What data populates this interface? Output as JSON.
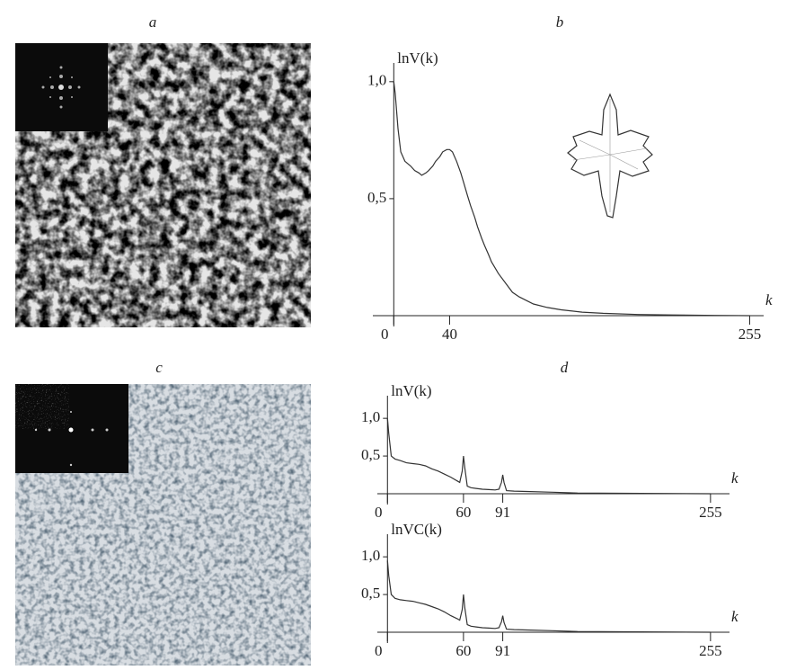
{
  "panels": [
    "a",
    "b",
    "c",
    "d"
  ],
  "chart_data": [
    {
      "type": "line",
      "y_label": "lnV(k)",
      "x_label": "k",
      "x": [
        0,
        1,
        3,
        5,
        8,
        12,
        15,
        18,
        20,
        23,
        25,
        28,
        30,
        33,
        35,
        38,
        40,
        42,
        45,
        48,
        50,
        53,
        55,
        58,
        60,
        63,
        65,
        68,
        70,
        75,
        80,
        85,
        90,
        100,
        110,
        120,
        135,
        150,
        175,
        200,
        230,
        255
      ],
      "values": [
        1.0,
        0.95,
        0.8,
        0.7,
        0.66,
        0.64,
        0.62,
        0.61,
        0.6,
        0.61,
        0.62,
        0.64,
        0.66,
        0.68,
        0.7,
        0.71,
        0.71,
        0.7,
        0.66,
        0.61,
        0.57,
        0.51,
        0.47,
        0.42,
        0.38,
        0.33,
        0.3,
        0.26,
        0.23,
        0.18,
        0.14,
        0.1,
        0.08,
        0.05,
        0.035,
        0.025,
        0.015,
        0.01,
        0.005,
        0.003,
        0.001,
        0
      ],
      "xlim": [
        -15,
        265
      ],
      "ylim": [
        0,
        1.08
      ],
      "xticks": [
        0,
        40,
        255
      ],
      "yticks": [
        {
          "value": 0.5,
          "label": "0,5"
        },
        {
          "value": 1.0,
          "label": "1,0"
        }
      ]
    },
    {
      "type": "line",
      "y_label": "lnV(k)",
      "x_label": "k",
      "x": [
        0,
        1,
        3,
        6,
        10,
        15,
        20,
        25,
        30,
        35,
        40,
        45,
        50,
        55,
        57,
        59,
        60,
        61,
        63,
        66,
        70,
        75,
        80,
        85,
        88,
        90,
        91,
        92,
        94,
        100,
        110,
        130,
        150,
        200,
        255
      ],
      "values": [
        1.0,
        0.8,
        0.5,
        0.46,
        0.44,
        0.41,
        0.4,
        0.39,
        0.37,
        0.33,
        0.3,
        0.26,
        0.22,
        0.17,
        0.15,
        0.3,
        0.5,
        0.35,
        0.1,
        0.08,
        0.07,
        0.06,
        0.055,
        0.05,
        0.06,
        0.15,
        0.25,
        0.15,
        0.04,
        0.035,
        0.03,
        0.02,
        0.01,
        0.005,
        0
      ],
      "xlim": [
        -8,
        270
      ],
      "ylim": [
        0,
        1.3
      ],
      "xticks": [
        0,
        60,
        91,
        255
      ],
      "yticks": [
        {
          "value": 0.5,
          "label": "0,5"
        },
        {
          "value": 1.0,
          "label": "1,0"
        }
      ]
    },
    {
      "type": "line",
      "y_label": "lnVC(k)",
      "x_label": "k",
      "x": [
        0,
        1,
        3,
        6,
        10,
        15,
        20,
        25,
        30,
        35,
        40,
        45,
        50,
        55,
        57,
        59,
        60,
        61,
        63,
        66,
        70,
        75,
        80,
        85,
        88,
        90,
        91,
        92,
        94,
        100,
        110,
        130,
        150,
        200,
        255
      ],
      "values": [
        0.95,
        0.75,
        0.5,
        0.45,
        0.43,
        0.42,
        0.41,
        0.39,
        0.37,
        0.34,
        0.31,
        0.27,
        0.22,
        0.18,
        0.16,
        0.3,
        0.5,
        0.33,
        0.1,
        0.08,
        0.07,
        0.06,
        0.055,
        0.05,
        0.06,
        0.14,
        0.22,
        0.13,
        0.04,
        0.035,
        0.03,
        0.02,
        0.01,
        0.005,
        0
      ],
      "xlim": [
        -8,
        270
      ],
      "ylim": [
        0,
        1.3
      ],
      "xticks": [
        0,
        60,
        91,
        255
      ],
      "yticks": [
        {
          "value": 0.5,
          "label": "0,5"
        },
        {
          "value": 1.0,
          "label": "1,0"
        }
      ]
    }
  ]
}
